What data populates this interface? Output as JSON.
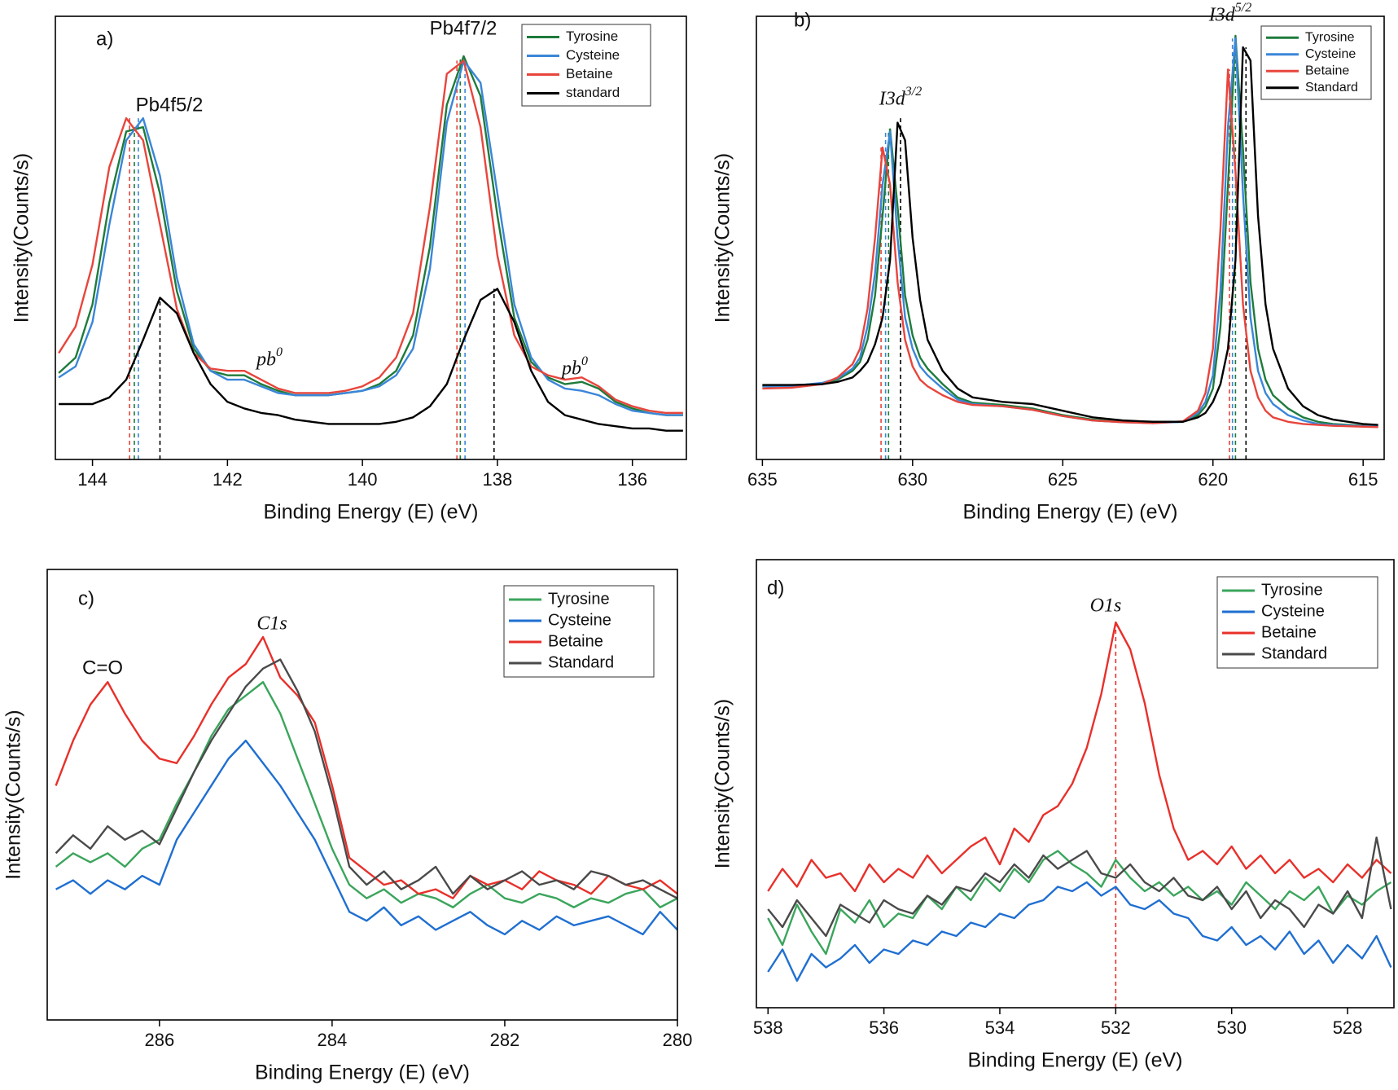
{
  "chart_data": [
    {
      "type": "line",
      "panel_label": "a)",
      "xlabel": "Binding Energy (E) (eV)",
      "ylabel": "Intensity(Counts/s)",
      "xlim": [
        144.55,
        135.2
      ],
      "xticks": [
        144,
        142,
        140,
        138,
        136
      ],
      "ylim": [
        0,
        100
      ],
      "legend": "upper right",
      "x": [
        144.5,
        144.25,
        144,
        143.75,
        143.5,
        143.25,
        143,
        142.75,
        142.5,
        142.25,
        142,
        141.75,
        141.5,
        141.25,
        141,
        140.75,
        140.5,
        140.25,
        140,
        139.75,
        139.5,
        139.25,
        139,
        138.75,
        138.5,
        138.25,
        138,
        137.75,
        137.5,
        137.25,
        137,
        136.75,
        136.5,
        136.25,
        136,
        135.75,
        135.5,
        135.25
      ],
      "series": [
        {
          "name": "Tyrosine",
          "color": "#1e7b3b",
          "values": [
            19.5,
            23,
            35,
            58,
            74,
            75,
            60,
            38,
            25,
            20,
            19,
            19,
            17,
            15.5,
            14.5,
            14.5,
            14.5,
            15,
            15.5,
            17,
            20,
            28,
            48,
            80,
            91,
            82,
            55,
            32,
            22,
            18.5,
            17,
            17.5,
            16,
            13,
            11.5,
            10.5,
            10,
            10
          ]
        },
        {
          "name": "Cysteine",
          "color": "#3a86d8",
          "values": [
            18.5,
            21,
            31,
            53,
            72,
            77,
            64,
            41,
            26,
            20,
            18,
            18,
            16.5,
            15,
            14.5,
            14.5,
            14.5,
            15,
            15.5,
            16.5,
            19,
            25,
            43,
            76,
            90,
            85,
            60,
            35,
            23,
            18,
            16,
            15.5,
            14.5,
            12.5,
            11,
            10.5,
            10,
            10
          ]
        },
        {
          "name": "Betaine",
          "color": "#e8453c",
          "values": [
            24,
            30,
            44,
            66,
            77,
            72,
            53,
            34,
            24,
            20.5,
            20,
            20,
            18,
            16,
            15,
            15,
            15,
            15.5,
            16.5,
            18.5,
            23,
            33,
            57,
            87,
            90,
            75,
            46,
            28,
            21,
            19,
            18,
            18.5,
            16.5,
            13.5,
            12,
            11,
            10.5,
            10.5
          ]
        },
        {
          "name": "standard",
          "color": "#000000",
          "values": [
            12.5,
            12.5,
            12.5,
            14,
            18,
            27,
            36.5,
            33,
            24,
            17,
            13,
            11.5,
            10.5,
            10,
            9,
            8.5,
            8,
            8,
            8,
            8,
            8.5,
            9.5,
            12,
            17,
            27,
            36,
            38.5,
            31,
            20,
            13,
            10,
            9,
            8,
            7.5,
            7,
            7,
            6.5,
            6.5
          ]
        }
      ],
      "vlines": [
        {
          "x": 143.45,
          "y": 77,
          "color": "#e8453c"
        },
        {
          "x": 143.38,
          "y": 75,
          "color": "#1e7b3b"
        },
        {
          "x": 143.32,
          "y": 77,
          "color": "#3a86d8"
        },
        {
          "x": 143.0,
          "y": 36.5,
          "color": "#000000"
        },
        {
          "x": 138.6,
          "y": 90,
          "color": "#e8453c"
        },
        {
          "x": 138.55,
          "y": 91,
          "color": "#1e7b3b"
        },
        {
          "x": 138.48,
          "y": 90,
          "color": "#3a86d8"
        },
        {
          "x": 138.05,
          "y": 38.5,
          "color": "#000000"
        }
      ],
      "annotations": [
        {
          "text": "Pb4f5/2"
        },
        {
          "text": "Pb4f7/2"
        },
        {
          "text": "pb",
          "sup": "0"
        },
        {
          "text": "pb",
          "sup": "0"
        }
      ]
    },
    {
      "type": "line",
      "panel_label": "b)",
      "xlabel": "Binding Energy (E) (eV)",
      "ylabel": "Intensity(Counts/s)",
      "xlim": [
        635.2,
        614.3
      ],
      "xticks": [
        635,
        630,
        625,
        620,
        615
      ],
      "ylim": [
        0,
        100
      ],
      "legend": "upper right",
      "x": [
        635,
        634,
        633,
        632.5,
        632,
        631.75,
        631.5,
        631.25,
        631,
        630.75,
        630.5,
        630.25,
        630,
        629.75,
        629.5,
        629,
        628.5,
        628,
        627,
        626,
        625,
        624,
        623,
        622,
        621,
        620.5,
        620.25,
        620,
        619.75,
        619.5,
        619.25,
        619,
        618.75,
        618.5,
        618.25,
        618,
        617.5,
        617,
        616.5,
        616,
        615,
        614.5
      ],
      "series": [
        {
          "name": "Tyrosine",
          "color": "#1e7b3b",
          "values": [
            16.5,
            16.6,
            17.2,
            18,
            20,
            22,
            27,
            37,
            55,
            74.5,
            57,
            37,
            28,
            23,
            20.5,
            17,
            14,
            12.8,
            12.3,
            11.5,
            10,
            9,
            8.5,
            8.3,
            8.5,
            10,
            12,
            16,
            30,
            62,
            95.6,
            70,
            40,
            25,
            18,
            14.5,
            11.5,
            9.5,
            8.5,
            8,
            7.6,
            7.4
          ]
        },
        {
          "name": "Cysteine",
          "color": "#3a86d8",
          "values": [
            16.5,
            16.6,
            17.3,
            18.3,
            20.5,
            23,
            30,
            42,
            62,
            74,
            50,
            32,
            25,
            21,
            19,
            16,
            13.5,
            12.5,
            12,
            11.2,
            9.8,
            8.8,
            8.4,
            8.2,
            8.5,
            10.5,
            13,
            19,
            38,
            75,
            95,
            60,
            32,
            20,
            15,
            12.5,
            10,
            8.8,
            8,
            7.8,
            7.5,
            7.4
          ]
        },
        {
          "name": "Betaine",
          "color": "#e8453c",
          "values": [
            16,
            16.2,
            17,
            18.5,
            21.5,
            25,
            34,
            50,
            70.4,
            62,
            40,
            27,
            21,
            18,
            16.5,
            14.5,
            13,
            12.3,
            12,
            11.2,
            9.8,
            8.8,
            8.4,
            8.2,
            8.6,
            11,
            15,
            25,
            52,
            88,
            65,
            35,
            20,
            14,
            11,
            9.5,
            8.5,
            8,
            7.8,
            7.6,
            7.4,
            7.3
          ]
        },
        {
          "name": "Standard",
          "color": "#000000",
          "values": [
            16.8,
            16.8,
            17,
            17.5,
            18.5,
            20,
            22,
            26,
            32,
            45,
            76,
            72,
            50,
            36,
            27,
            20,
            16,
            14,
            13,
            12.5,
            11,
            9.5,
            8.8,
            8.5,
            8.5,
            9.5,
            10.5,
            13,
            17,
            25,
            45,
            93,
            90,
            55,
            35,
            25,
            16,
            12,
            10,
            9,
            8,
            7.8
          ]
        }
      ],
      "vlines": [
        {
          "x": 631.05,
          "y": 70.4,
          "color": "#e8453c"
        },
        {
          "x": 630.9,
          "y": 74,
          "color": "#3a86d8"
        },
        {
          "x": 630.8,
          "y": 74.5,
          "color": "#1e7b3b"
        },
        {
          "x": 630.4,
          "y": 77,
          "color": "#000000"
        },
        {
          "x": 619.45,
          "y": 88,
          "color": "#e8453c"
        },
        {
          "x": 619.35,
          "y": 95,
          "color": "#3a86d8"
        },
        {
          "x": 619.25,
          "y": 95.6,
          "color": "#1e7b3b"
        },
        {
          "x": 618.9,
          "y": 93,
          "color": "#000000"
        }
      ],
      "annotations": [
        {
          "text": "I3d",
          "sup": "3/2"
        },
        {
          "text": "I3d",
          "sup": "5/2"
        }
      ]
    },
    {
      "type": "line",
      "panel_label": "c)",
      "xlabel": "Binding Energy (E) (eV)",
      "ylabel": "Intensity(Counts/s)",
      "xlim": [
        287.3,
        280
      ],
      "xticks": [
        286,
        284,
        282,
        280
      ],
      "ylim": [
        0,
        100
      ],
      "legend": "upper right",
      "x": [
        287.2,
        287,
        286.8,
        286.6,
        286.4,
        286.2,
        286,
        285.8,
        285.6,
        285.4,
        285.2,
        285,
        284.8,
        284.6,
        284.4,
        284.2,
        284,
        283.8,
        283.6,
        283.4,
        283.2,
        283,
        282.8,
        282.6,
        282.4,
        282.2,
        282,
        281.8,
        281.6,
        281.4,
        281.2,
        281,
        280.8,
        280.6,
        280.4,
        280.2,
        280
      ],
      "series": [
        {
          "name": "Tyrosine",
          "color": "#3ba55c",
          "values": [
            34,
            37,
            35,
            37,
            34,
            38,
            40,
            48,
            55,
            63,
            69,
            72,
            75,
            68,
            58,
            48,
            38,
            30,
            27,
            29,
            26,
            28,
            27,
            25,
            28,
            30,
            27,
            26,
            28,
            27,
            25,
            27,
            26,
            28,
            29,
            25,
            27
          ]
        },
        {
          "name": "Cysteine",
          "color": "#1f6fd1",
          "values": [
            29,
            31,
            28,
            31,
            29,
            32,
            30,
            40,
            46,
            52,
            58,
            62,
            57,
            52,
            46,
            40,
            32,
            24,
            22,
            25,
            21,
            23,
            20,
            22,
            24,
            21,
            19,
            22,
            20,
            23,
            21,
            22,
            23,
            21,
            19,
            24,
            20
          ]
        },
        {
          "name": "Betaine",
          "color": "#e8302a",
          "values": [
            52,
            62,
            70,
            75,
            68,
            62,
            58,
            57,
            63,
            70,
            76,
            79,
            85,
            76,
            72,
            66,
            52,
            36,
            33,
            30,
            31,
            28,
            29,
            27,
            32,
            30,
            31,
            29,
            33,
            31,
            30,
            28,
            32,
            30,
            29,
            31,
            28
          ]
        },
        {
          "name": "Standard",
          "color": "#4a4a4a",
          "values": [
            37,
            41,
            38,
            43,
            40,
            42,
            39,
            47,
            55,
            62,
            68,
            74,
            78,
            80,
            73,
            64,
            50,
            34,
            30,
            33,
            29,
            31,
            34,
            28,
            32,
            29,
            31,
            33,
            30,
            31,
            29,
            33,
            32,
            30,
            31,
            29,
            27
          ]
        }
      ],
      "vlines": [],
      "annotations": [
        {
          "text": "C=O"
        },
        {
          "text": "C1s"
        }
      ]
    },
    {
      "type": "line",
      "panel_label": "d)",
      "xlabel": "Binding Energy (E) (eV)",
      "ylabel": "Intensity(Counts/s)",
      "xlim": [
        538.2,
        527.2
      ],
      "xticks": [
        538,
        536,
        534,
        532,
        530,
        528
      ],
      "ylim": [
        0,
        100
      ],
      "legend": "upper right",
      "x": [
        538,
        537.75,
        537.5,
        537.25,
        537,
        536.75,
        536.5,
        536.25,
        536,
        535.75,
        535.5,
        535.25,
        535,
        534.75,
        534.5,
        534.25,
        534,
        533.75,
        533.5,
        533.25,
        533,
        532.75,
        532.5,
        532.25,
        532,
        531.75,
        531.5,
        531.25,
        531,
        530.75,
        530.5,
        530.25,
        530,
        529.75,
        529.5,
        529.25,
        529,
        528.75,
        528.5,
        528.25,
        528,
        527.75,
        527.5,
        527.25
      ],
      "series": [
        {
          "name": "Tyrosine",
          "color": "#3ba55c",
          "values": [
            20,
            14,
            23,
            17,
            12,
            22,
            19,
            24,
            18,
            21,
            20,
            25,
            22,
            27,
            24,
            29,
            26,
            31,
            28,
            33,
            35,
            32,
            30,
            27,
            33,
            29,
            26,
            28,
            25,
            27,
            24,
            26,
            23,
            28,
            25,
            22,
            26,
            24,
            27,
            21,
            25,
            23,
            26,
            28
          ]
        },
        {
          "name": "Cysteine",
          "color": "#1f6fd1",
          "values": [
            8,
            13,
            6,
            12,
            9,
            11,
            14,
            10,
            13,
            12,
            15,
            14,
            17,
            16,
            19,
            18,
            21,
            20,
            23,
            24,
            27,
            26,
            28,
            25,
            27,
            23,
            22,
            24,
            21,
            20,
            16,
            15,
            18,
            14,
            16,
            13,
            17,
            12,
            15,
            10,
            14,
            11,
            16,
            9
          ]
        },
        {
          "name": "Betaine",
          "color": "#e8302a",
          "values": [
            26,
            31,
            27,
            33,
            29,
            30,
            26,
            32,
            28,
            31,
            29,
            34,
            30,
            33,
            36,
            38,
            32,
            40,
            37,
            43,
            45,
            50,
            58,
            70,
            86,
            80,
            68,
            52,
            40,
            33,
            35,
            32,
            36,
            31,
            34,
            30,
            33,
            29,
            31,
            28,
            32,
            29,
            33,
            30
          ]
        },
        {
          "name": "Standard",
          "color": "#4a4a4a",
          "values": [
            22,
            18,
            24,
            20,
            16,
            23,
            21,
            19,
            24,
            22,
            21,
            25,
            23,
            27,
            26,
            30,
            28,
            32,
            29,
            34,
            31,
            33,
            35,
            30,
            29,
            32,
            28,
            26,
            29,
            25,
            24,
            27,
            22,
            26,
            20,
            24,
            22,
            18,
            23,
            21,
            26,
            20,
            38,
            22
          ]
        }
      ],
      "vlines": [
        {
          "x": 532,
          "y": 86,
          "color": "#e8302a"
        }
      ],
      "annotations": [
        {
          "text": "O1s"
        }
      ]
    }
  ]
}
